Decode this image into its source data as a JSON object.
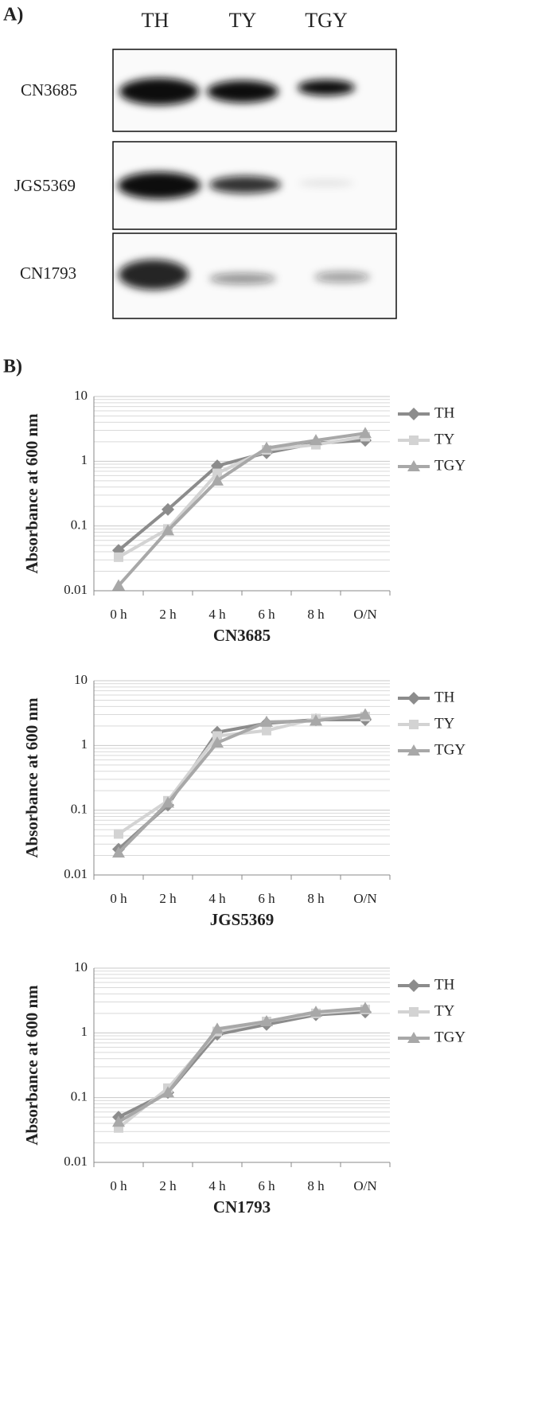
{
  "panel_a": {
    "label": "A)",
    "lanes": [
      "TH",
      "TY",
      "TGY"
    ],
    "strains": [
      "CN3685",
      "JGS5369",
      "CN1793"
    ]
  },
  "panel_b": {
    "label": "B)"
  },
  "chart_data": [
    {
      "type": "line",
      "y_label": "Absorbance at 600 nm",
      "x_label": "CN3685",
      "log_scale": true,
      "grid": true,
      "minor_grid": true,
      "legend": "right",
      "categories": [
        "0 h",
        "2 h",
        "4 h",
        "6 h",
        "8 h",
        "O/N"
      ],
      "ylim": [
        0.01,
        10
      ],
      "yticks": [
        0.01,
        0.1,
        1,
        10
      ],
      "series": [
        {
          "name": "TH",
          "color": "#8c8c8c",
          "marker": "diamond",
          "values": [
            0.042,
            0.18,
            0.85,
            1.35,
            1.9,
            2.1
          ]
        },
        {
          "name": "TY",
          "color": "#d3d3d3",
          "marker": "square",
          "values": [
            0.033,
            0.09,
            0.65,
            1.5,
            1.8,
            2.4
          ]
        },
        {
          "name": "TGY",
          "color": "#a8a8a8",
          "marker": "triangle",
          "values": [
            0.012,
            0.085,
            0.5,
            1.6,
            2.1,
            2.7
          ]
        }
      ]
    },
    {
      "type": "line",
      "y_label": "Absorbance at 600 nm",
      "x_label": "JGS5369",
      "log_scale": true,
      "grid": true,
      "minor_grid": true,
      "legend": "right",
      "categories": [
        "0 h",
        "2 h",
        "4 h",
        "6 h",
        "8 h",
        "O/N"
      ],
      "ylim": [
        0.01,
        10
      ],
      "yticks": [
        0.01,
        0.1,
        1,
        10
      ],
      "series": [
        {
          "name": "TH",
          "color": "#8c8c8c",
          "marker": "diamond",
          "values": [
            0.025,
            0.12,
            1.6,
            2.2,
            2.5,
            2.5
          ]
        },
        {
          "name": "TY",
          "color": "#d3d3d3",
          "marker": "square",
          "values": [
            0.043,
            0.14,
            1.4,
            1.7,
            2.6,
            2.8
          ]
        },
        {
          "name": "TGY",
          "color": "#a8a8a8",
          "marker": "triangle",
          "values": [
            0.022,
            0.13,
            1.1,
            2.3,
            2.4,
            3.0
          ]
        }
      ]
    },
    {
      "type": "line",
      "y_label": "Absorbance at 600 nm",
      "x_label": "CN1793",
      "log_scale": true,
      "grid": true,
      "minor_grid": true,
      "legend": "right",
      "categories": [
        "0 h",
        "2 h",
        "4 h",
        "6 h",
        "8 h",
        "O/N"
      ],
      "ylim": [
        0.01,
        10
      ],
      "yticks": [
        0.01,
        0.1,
        1,
        10
      ],
      "series": [
        {
          "name": "TH",
          "color": "#8c8c8c",
          "marker": "diamond",
          "values": [
            0.05,
            0.12,
            0.95,
            1.35,
            1.9,
            2.1
          ]
        },
        {
          "name": "TY",
          "color": "#d3d3d3",
          "marker": "square",
          "values": [
            0.034,
            0.14,
            1.05,
            1.5,
            2.0,
            2.3
          ]
        },
        {
          "name": "TGY",
          "color": "#a8a8a8",
          "marker": "triangle",
          "values": [
            0.042,
            0.12,
            1.15,
            1.5,
            2.1,
            2.4
          ]
        }
      ]
    }
  ]
}
